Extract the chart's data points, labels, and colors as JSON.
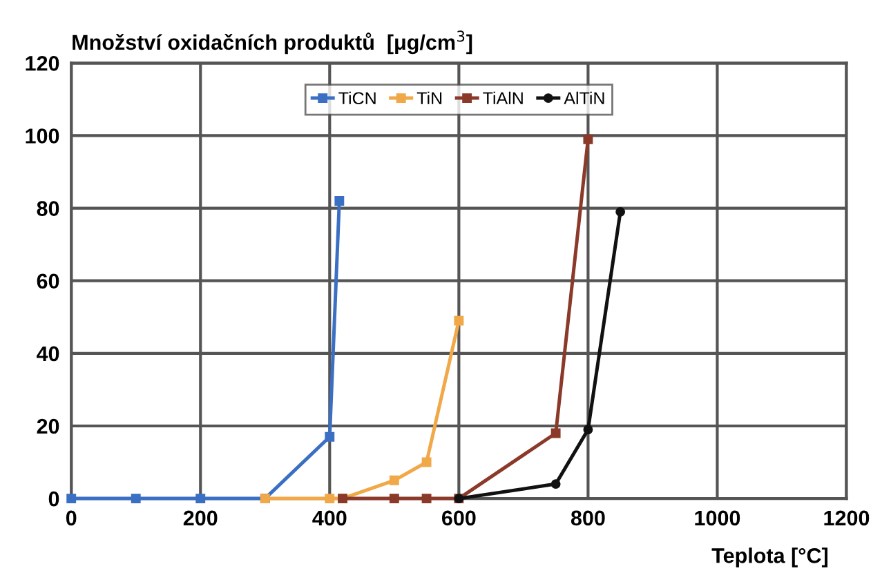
{
  "chart_data": {
    "type": "line",
    "ylabel": "Množství oxidačních produktů  [μg/cm$^{3}$]",
    "xlabel": "Teplota [°C]",
    "xlim": [
      0,
      1200
    ],
    "xticks": [
      0,
      200,
      400,
      600,
      800,
      1000,
      1200
    ],
    "ylim": [
      0,
      120
    ],
    "yticks": [
      0,
      20,
      40,
      60,
      80,
      100,
      120
    ],
    "grid": true,
    "legend": "top",
    "line_style": "solid",
    "series": [
      {
        "name": "TiCN",
        "color": "#3a6fc4",
        "marker": "square",
        "x": [
          0,
          100,
          200,
          300,
          400,
          415
        ],
        "values": [
          0,
          0,
          0,
          0,
          17,
          82
        ]
      },
      {
        "name": "TiN",
        "color": "#f0a848",
        "marker": "square",
        "x": [
          300,
          400,
          420,
          500,
          550,
          600
        ],
        "values": [
          0,
          0,
          0,
          5,
          10,
          49
        ]
      },
      {
        "name": "TiAlN",
        "color": "#8b3a2a",
        "marker": "square",
        "x": [
          420,
          500,
          550,
          600,
          750,
          800
        ],
        "values": [
          0,
          0,
          0,
          0,
          18,
          99
        ]
      },
      {
        "name": "AlTiN",
        "color": "#111111",
        "marker": "circle",
        "x": [
          600,
          750,
          800,
          850
        ],
        "values": [
          0,
          4,
          19,
          79
        ]
      }
    ]
  }
}
